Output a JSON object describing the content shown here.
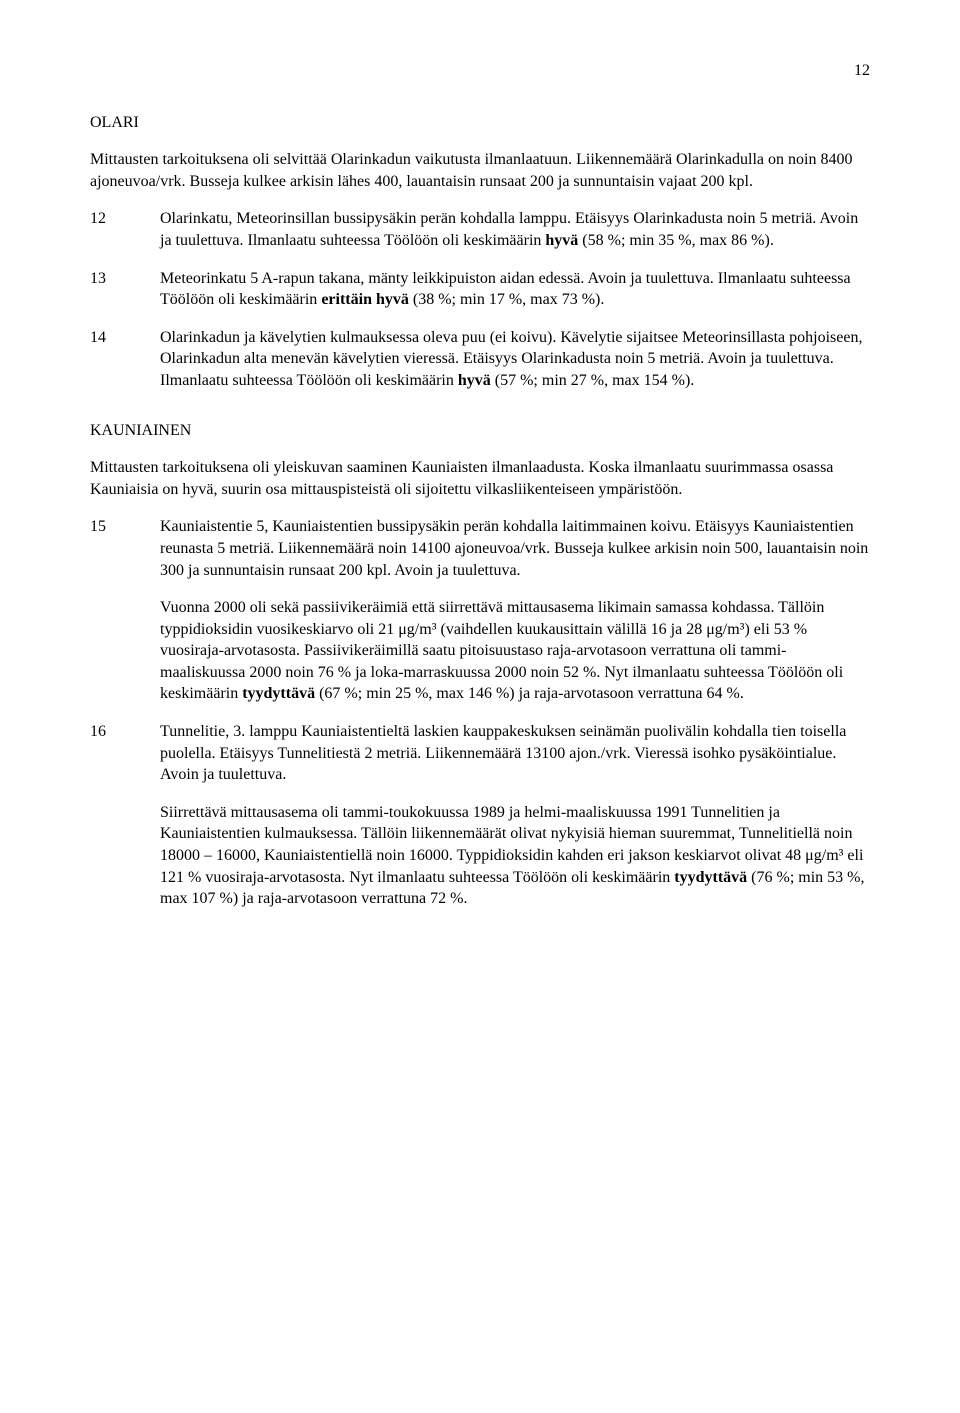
{
  "page_number": "12",
  "sections": {
    "olari": {
      "heading": "OLARI",
      "intro": "Mittausten tarkoituksena oli selvittää Olarinkadun vaikutusta ilmanlaatuun. Liikennemäärä Olarinkadulla on noin 8400 ajoneuvoa/vrk. Busseja kulkee arkisin lähes 400, lauantaisin runsaat 200 ja sunnuntaisin vajaat 200 kpl.",
      "items": [
        {
          "num": "12",
          "paragraphs": [
            {
              "pre": "Olarinkatu, Meteorinsillan bussipysäkin perän kohdalla lamppu. Etäisyys Olarinkadusta noin 5 metriä. Avoin ja tuulettuva. Ilmanlaatu suhteessa Töölöön oli keskimäärin ",
              "bold": "hyvä",
              "post": " (58 %; min 35 %, max 86 %)."
            }
          ]
        },
        {
          "num": "13",
          "paragraphs": [
            {
              "pre": "Meteorinkatu 5 A-rapun takana, mänty leikkipuiston aidan edessä. Avoin ja tuulettuva. Ilmanlaatu suhteessa Töölöön oli keskimäärin ",
              "bold": "erittäin hyvä",
              "post": " (38 %; min 17 %, max 73 %)."
            }
          ]
        },
        {
          "num": "14",
          "paragraphs": [
            {
              "pre": "Olarinkadun ja kävelytien kulmauksessa oleva puu (ei koivu). Kävelytie sijaitsee Meteorinsillasta pohjoiseen, Olarinkadun alta menevän kävelytien vieressä. Etäisyys Olarinkadusta noin 5 metriä. Avoin ja tuulettuva. Ilmanlaatu suhteessa Töölöön oli keskimäärin ",
              "bold": "hyvä",
              "post": " (57 %; min 27 %, max 154 %)."
            }
          ]
        }
      ]
    },
    "kauniainen": {
      "heading": "KAUNIAINEN",
      "intro": "Mittausten tarkoituksena oli yleiskuvan saaminen Kauniaisten ilmanlaadusta. Koska ilmanlaatu suurimmassa osassa Kauniaisia on hyvä, suurin osa mittauspisteistä oli sijoitettu vilkasliikenteiseen ympäristöön.",
      "items": [
        {
          "num": "15",
          "paragraphs": [
            {
              "pre": "Kauniaistentie 5, Kauniaistentien bussipysäkin perän kohdalla laitimmainen koivu. Etäisyys Kauniaistentien reunasta 5 metriä. Liikennemäärä noin 14100 ajoneuvoa/vrk. Busseja kulkee arkisin noin 500, lauantaisin noin 300 ja sunnuntaisin runsaat 200 kpl. Avoin ja tuulettuva.",
              "bold": "",
              "post": ""
            },
            {
              "pre": "Vuonna 2000 oli sekä passiivikeräimiä että siirrettävä mittausasema likimain samassa kohdassa. Tällöin typpidioksidin vuosikeskiarvo oli 21 μg/m³ (vaihdellen kuukausittain välillä 16 ja 28 μg/m³) eli 53 % vuosiraja-arvotasosta. Passiivikeräimillä saatu pitoisuustaso raja-arvotasoon verrattuna oli tammi-maaliskuussa 2000 noin 76 % ja loka-marraskuussa 2000 noin 52 %. Nyt ilmanlaatu suhteessa Töölöön oli keskimäärin ",
              "bold": "tyydyttävä",
              "post": " (67 %; min 25 %, max 146 %) ja raja-arvotasoon verrattuna 64 %."
            }
          ]
        },
        {
          "num": "16",
          "paragraphs": [
            {
              "pre": "Tunnelitie, 3. lamppu Kauniaistentieltä laskien kauppakeskuksen seinämän puolivälin kohdalla tien toisella puolella. Etäisyys Tunnelitiestä 2 metriä. Liikennemäärä 13100 ajon./vrk. Vieressä isohko pysäköintialue. Avoin ja tuulettuva.",
              "bold": "",
              "post": ""
            },
            {
              "pre": "Siirrettävä mittausasema oli tammi-toukokuussa 1989 ja helmi-maaliskuussa 1991 Tunnelitien ja Kauniaistentien kulmauksessa. Tällöin liikennemäärät olivat nykyisiä hieman suuremmat, Tunnelitiellä noin 18000 – 16000, Kauniaistentiellä noin 16000. Typpidioksidin kahden eri jakson keskiarvot olivat 48 μg/m³ eli 121 % vuosiraja-arvotasosta. Nyt ilmanlaatu suhteessa Töölöön oli keskimäärin ",
              "bold": "tyydyttävä",
              "post": " (76 %; min 53 %, max 107 %) ja raja-arvotasoon verrattuna 72 %."
            }
          ]
        }
      ]
    }
  }
}
